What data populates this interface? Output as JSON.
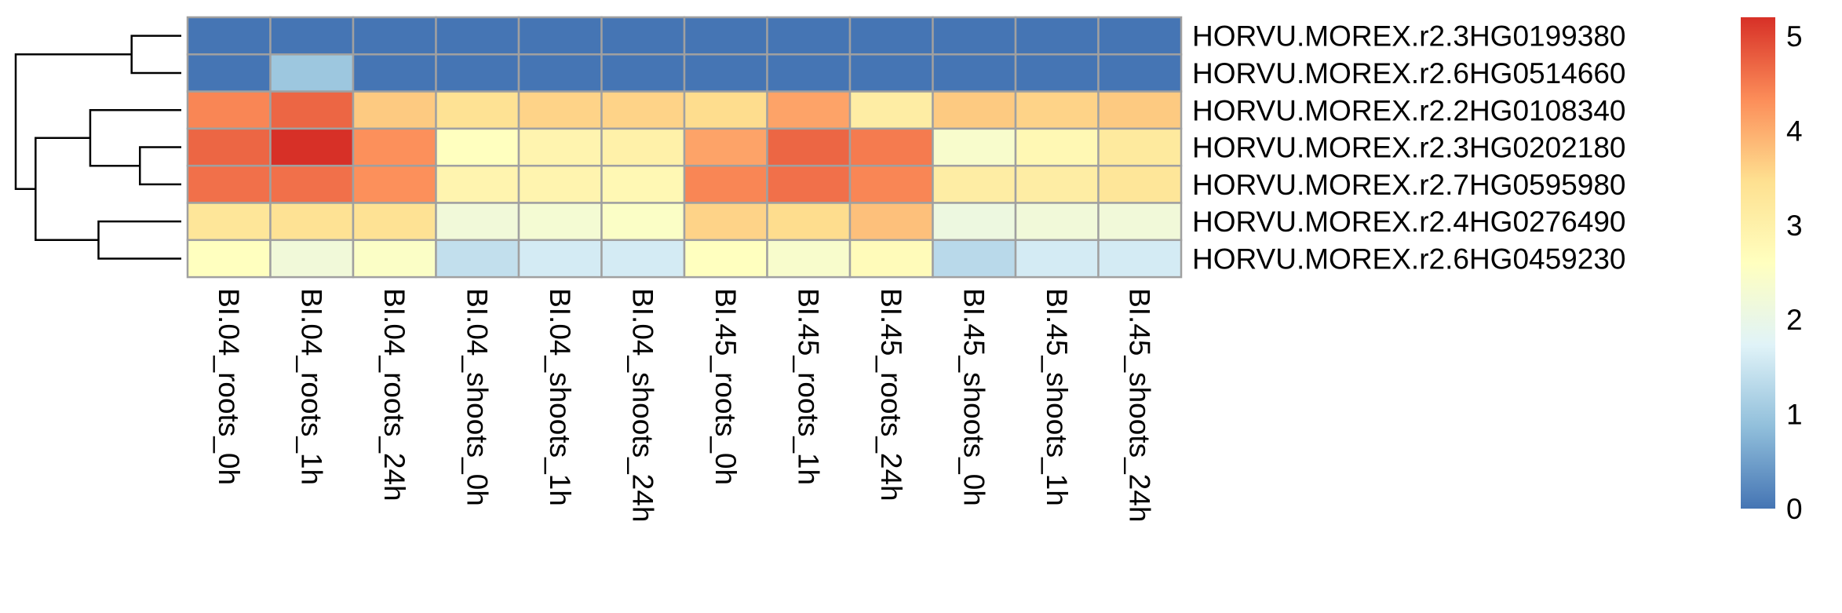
{
  "chart_data": {
    "type": "heatmap",
    "title": "",
    "columns": [
      "BI.04_roots_0h",
      "BI.04_roots_1h",
      "BI.04_roots_24h",
      "BI.04_shoots_0h",
      "BI.04_shoots_1h",
      "BI.04_shoots_24h",
      "BI.45_roots_0h",
      "BI.45_roots_1h",
      "BI.45_roots_24h",
      "BI.45_shoots_0h",
      "BI.45_shoots_1h",
      "BI.45_shoots_24h"
    ],
    "rows": [
      "HORVU.MOREX.r2.3HG0199380",
      "HORVU.MOREX.r2.6HG0514660",
      "HORVU.MOREX.r2.2HG0108340",
      "HORVU.MOREX.r2.3HG0202180",
      "HORVU.MOREX.r2.7HG0595980",
      "HORVU.MOREX.r2.4HG0276490",
      "HORVU.MOREX.r2.6HG0459230"
    ],
    "values": [
      [
        0.0,
        0.0,
        0.0,
        0.0,
        0.0,
        0.0,
        0.0,
        0.0,
        0.0,
        0.0,
        0.0,
        0.0
      ],
      [
        0.0,
        1.0,
        0.0,
        0.0,
        0.0,
        0.0,
        0.0,
        0.0,
        0.0,
        0.0,
        0.0,
        0.0
      ],
      [
        4.4,
        4.7,
        3.7,
        3.4,
        3.6,
        3.6,
        3.5,
        4.1,
        3.1,
        3.7,
        3.6,
        3.7
      ],
      [
        4.7,
        5.2,
        4.3,
        2.6,
        2.9,
        3.0,
        4.1,
        4.7,
        4.5,
        2.4,
        2.8,
        3.2
      ],
      [
        4.6,
        4.6,
        4.3,
        2.9,
        2.9,
        2.8,
        4.4,
        4.6,
        4.4,
        3.1,
        3.1,
        3.3
      ],
      [
        3.3,
        3.4,
        3.4,
        2.2,
        2.3,
        2.5,
        3.6,
        3.5,
        3.8,
        2.1,
        2.2,
        2.2
      ],
      [
        2.6,
        2.2,
        2.5,
        1.4,
        1.6,
        1.6,
        2.6,
        2.4,
        2.7,
        1.3,
        1.6,
        1.6
      ]
    ],
    "color_scale": {
      "min": 0,
      "max": 5.2,
      "ticks": [
        0,
        1,
        2,
        3,
        4,
        5
      ],
      "colors": [
        "#4575b4",
        "#91bfdb",
        "#e0f3f8",
        "#ffffbf",
        "#fee090",
        "#fc8d59",
        "#d73027"
      ]
    },
    "row_dendrogram": [
      [
        0,
        1,
        0.3
      ],
      [
        3,
        4,
        0.25
      ],
      [
        2,
        8,
        0.55
      ],
      [
        5,
        6,
        0.5
      ],
      [
        9,
        10,
        0.88
      ],
      [
        7,
        11,
        1.0
      ]
    ],
    "cell_border_color": "#a0a0a0"
  }
}
